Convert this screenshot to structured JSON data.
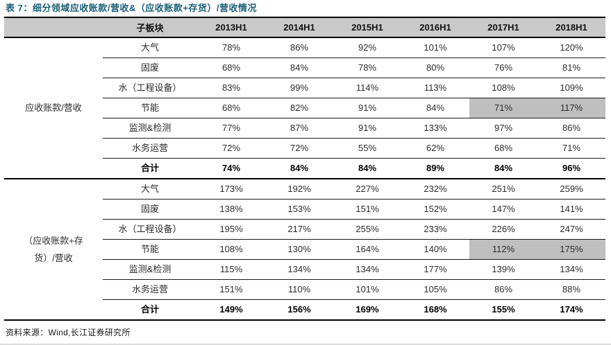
{
  "page": {
    "title": "表 7：细分领域应收账款/营收&（应收账款+存货）/营收情况",
    "source": "资料来源：Wind,长江证券研究所"
  },
  "colors": {
    "title_color": "#1b6078",
    "header_bg": "#c9c9c9",
    "highlight_bg": "#bfbfbf",
    "border_dark": "#000000",
    "text_color": "#2b2b2b"
  },
  "chart_data": {
    "type": "table",
    "title": "表 7：细分领域应收账款/营收&（应收账款+存货）/营收情况",
    "corner_label": "",
    "columns": [
      "子板块",
      "2013H1",
      "2014H1",
      "2015H1",
      "2016H1",
      "2017H1",
      "2018H1"
    ],
    "sections": [
      {
        "label": "应收账款/营收",
        "rows": [
          {
            "name": "大气",
            "values": [
              "78%",
              "86%",
              "92%",
              "101%",
              "107%",
              "120%"
            ],
            "bold": false
          },
          {
            "name": "固废",
            "values": [
              "68%",
              "84%",
              "78%",
              "80%",
              "76%",
              "81%"
            ],
            "bold": false
          },
          {
            "name": "水（工程设备）",
            "values": [
              "83%",
              "99%",
              "114%",
              "113%",
              "108%",
              "109%"
            ],
            "bold": false
          },
          {
            "name": "节能",
            "values": [
              "68%",
              "82%",
              "91%",
              "84%",
              "71%",
              "117%"
            ],
            "bold": false,
            "highlight_cols": [
              4,
              5
            ]
          },
          {
            "name": "监测&检测",
            "values": [
              "77%",
              "87%",
              "91%",
              "133%",
              "97%",
              "86%"
            ],
            "bold": false
          },
          {
            "name": "水务运营",
            "values": [
              "72%",
              "72%",
              "55%",
              "62%",
              "68%",
              "71%"
            ],
            "bold": false
          },
          {
            "name": "合计",
            "values": [
              "74%",
              "84%",
              "84%",
              "89%",
              "84%",
              "96%"
            ],
            "bold": true
          }
        ]
      },
      {
        "label": "（应收账款+存货）/营收",
        "rows": [
          {
            "name": "大气",
            "values": [
              "173%",
              "192%",
              "227%",
              "232%",
              "251%",
              "259%"
            ],
            "bold": false
          },
          {
            "name": "固废",
            "values": [
              "138%",
              "153%",
              "151%",
              "152%",
              "147%",
              "141%"
            ],
            "bold": false
          },
          {
            "name": "水（工程设备）",
            "values": [
              "195%",
              "217%",
              "255%",
              "233%",
              "226%",
              "247%"
            ],
            "bold": false
          },
          {
            "name": "节能",
            "values": [
              "108%",
              "130%",
              "164%",
              "140%",
              "112%",
              "175%"
            ],
            "bold": false,
            "highlight_cols": [
              4,
              5
            ]
          },
          {
            "name": "监测&检测",
            "values": [
              "115%",
              "134%",
              "134%",
              "177%",
              "139%",
              "134%"
            ],
            "bold": false
          },
          {
            "name": "水务运营",
            "values": [
              "151%",
              "110%",
              "101%",
              "105%",
              "86%",
              "88%"
            ],
            "bold": false
          },
          {
            "name": "合计",
            "values": [
              "149%",
              "156%",
              "169%",
              "168%",
              "155%",
              "174%"
            ],
            "bold": true
          }
        ]
      }
    ]
  }
}
